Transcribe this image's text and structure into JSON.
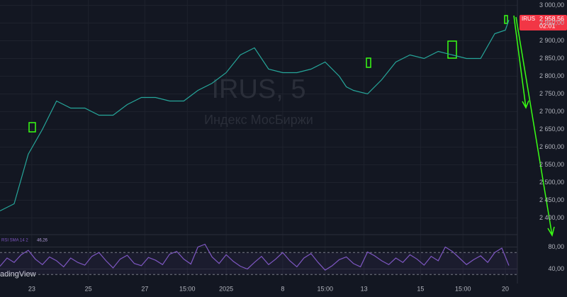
{
  "chart_data": [
    {
      "type": "line",
      "title": "IRUS, 5",
      "subtitle": "Индекс МосБиржи",
      "x": [
        0,
        4,
        8,
        12,
        16,
        20,
        24,
        28,
        32,
        36,
        40,
        44,
        48,
        52,
        56,
        60,
        64,
        68,
        72,
        76,
        80,
        84,
        88,
        92,
        96,
        98,
        100,
        104,
        108,
        112,
        116,
        120,
        124,
        128,
        132,
        136,
        140,
        143,
        144
      ],
      "series": [
        {
          "name": "IRUS",
          "color": "#26a69a",
          "values": [
            2420,
            2440,
            2580,
            2650,
            2730,
            2710,
            2710,
            2690,
            2690,
            2720,
            2740,
            2740,
            2730,
            2730,
            2760,
            2780,
            2810,
            2860,
            2880,
            2820,
            2810,
            2810,
            2820,
            2840,
            2800,
            2770,
            2760,
            2750,
            2790,
            2840,
            2860,
            2850,
            2870,
            2860,
            2850,
            2850,
            2920,
            2930,
            2958.56
          ]
        }
      ],
      "xlim": [
        0,
        146
      ],
      "ylim": [
        2355,
        3015
      ],
      "yticks": [
        {
          "value": 2400,
          "label": "2 400,00"
        },
        {
          "value": 2450,
          "label": "2 450,00"
        },
        {
          "value": 2500,
          "label": "2 500,00"
        },
        {
          "value": 2550,
          "label": "2 550,00"
        },
        {
          "value": 2600,
          "label": "2 600,00"
        },
        {
          "value": 2650,
          "label": "2 650,00"
        },
        {
          "value": 2700,
          "label": "2 700,00"
        },
        {
          "value": 2750,
          "label": "2 750,00"
        },
        {
          "value": 2800,
          "label": "2 800,00"
        },
        {
          "value": 2850,
          "label": "2 850,00"
        },
        {
          "value": 2900,
          "label": "2 900,00"
        },
        {
          "value": 2950,
          "label": "2 950,00"
        },
        {
          "value": 3000,
          "label": "3 000,00"
        }
      ],
      "grid": true,
      "last_label": {
        "symbol": "IRUS",
        "price": "2 958,56",
        "countdown": "02:01"
      }
    },
    {
      "type": "line",
      "title": "RSI SMA 14 2",
      "value_label": "46,26",
      "x": [
        0,
        2,
        4,
        6,
        8,
        10,
        12,
        14,
        16,
        18,
        20,
        22,
        24,
        26,
        28,
        30,
        32,
        34,
        36,
        38,
        40,
        42,
        44,
        46,
        48,
        50,
        52,
        54,
        56,
        58,
        60,
        62,
        64,
        66,
        68,
        70,
        72,
        74,
        76,
        78,
        80,
        82,
        84,
        86,
        88,
        90,
        92,
        94,
        96,
        98,
        100,
        102,
        104,
        106,
        108,
        110,
        112,
        114,
        116,
        118,
        120,
        122,
        124,
        126,
        128,
        130,
        132,
        134,
        136,
        138,
        140,
        142,
        144
      ],
      "series": [
        {
          "name": "RSI",
          "color": "#7e57c2",
          "values": [
            45,
            60,
            52,
            66,
            74,
            58,
            48,
            62,
            55,
            44,
            60,
            52,
            47,
            63,
            70,
            55,
            42,
            58,
            65,
            50,
            46,
            61,
            56,
            48,
            67,
            72,
            58,
            49,
            80,
            85,
            62,
            50,
            66,
            54,
            45,
            40,
            52,
            63,
            48,
            58,
            70,
            55,
            44,
            60,
            68,
            52,
            38,
            46,
            57,
            62,
            50,
            44,
            71,
            64,
            55,
            48,
            60,
            52,
            66,
            58,
            47,
            63,
            55,
            80,
            72,
            60,
            48,
            57,
            64,
            52,
            70,
            78,
            46.26
          ]
        }
      ],
      "xlim": [
        0,
        146
      ],
      "ylim": [
        20,
        100
      ],
      "yticks": [
        {
          "value": 40,
          "label": "40,00"
        },
        {
          "value": 80,
          "label": "80,00"
        }
      ],
      "bands": [
        30,
        70
      ],
      "xticks": [
        {
          "value": 9,
          "label": "23"
        },
        {
          "value": 25,
          "label": "25"
        },
        {
          "value": 41,
          "label": "27"
        },
        {
          "value": 53,
          "label": "15:00"
        },
        {
          "value": 64,
          "label": "2025"
        },
        {
          "value": 80,
          "label": "8"
        },
        {
          "value": 92,
          "label": "15:00"
        },
        {
          "value": 103,
          "label": "13"
        },
        {
          "value": 119,
          "label": "15"
        },
        {
          "value": 131,
          "label": "15:00"
        },
        {
          "value": 143,
          "label": "20"
        }
      ]
    }
  ],
  "footer": {
    "brand": "adingView"
  }
}
